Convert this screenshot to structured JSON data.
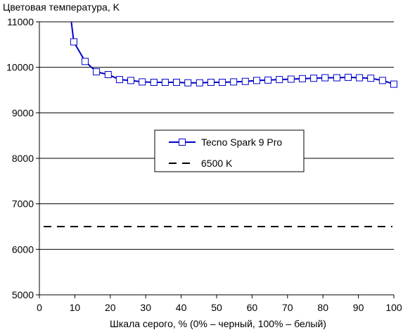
{
  "chart_data": {
    "type": "line",
    "ylabel": "Цветовая температура, K",
    "xlabel": "Шкала серого, % (0% – черный, 100% – белый)",
    "xlim": [
      0,
      100
    ],
    "ylim": [
      5000,
      11000
    ],
    "x_ticks": [
      0,
      10,
      20,
      30,
      40,
      50,
      60,
      70,
      80,
      90,
      100
    ],
    "y_ticks": [
      5000,
      6000,
      7000,
      8000,
      9000,
      10000,
      11000
    ],
    "grid": "horizontal",
    "legend_position": "center-right",
    "series": [
      {
        "name": "Tecno Spark 9 Pro",
        "color": "#0000cc",
        "marker": "open-square",
        "curve_from": {
          "x": 9,
          "y": 11000
        },
        "x": [
          9.7,
          12.9,
          16.1,
          19.4,
          22.6,
          25.8,
          29.0,
          32.3,
          35.5,
          38.7,
          41.9,
          45.2,
          48.4,
          51.6,
          54.8,
          58.1,
          61.3,
          64.5,
          67.7,
          71.0,
          74.2,
          77.4,
          80.6,
          83.9,
          87.1,
          90.3,
          93.5,
          96.8,
          100
        ],
        "y": [
          10560,
          10130,
          9900,
          9840,
          9730,
          9710,
          9680,
          9670,
          9670,
          9670,
          9660,
          9660,
          9670,
          9670,
          9680,
          9690,
          9710,
          9720,
          9730,
          9740,
          9750,
          9760,
          9770,
          9770,
          9780,
          9770,
          9760,
          9710,
          9630
        ]
      },
      {
        "name": "6500 K",
        "color": "#000000",
        "style": "dashed",
        "y_constant": 6500
      }
    ]
  }
}
